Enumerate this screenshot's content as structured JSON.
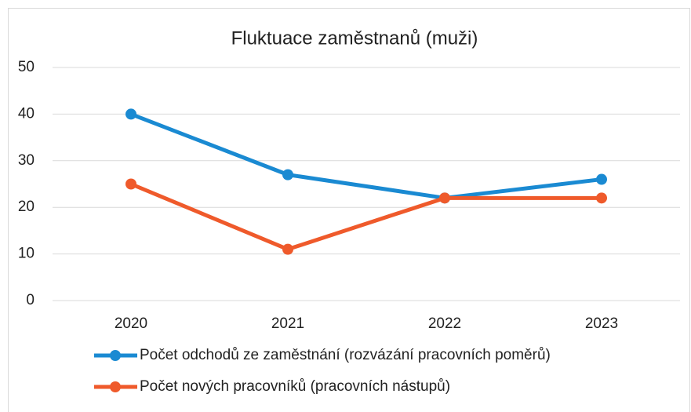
{
  "chart_data": {
    "type": "line",
    "title": "Fluktuace zaměstnanů (muži)",
    "categories": [
      "2020",
      "2021",
      "2022",
      "2023"
    ],
    "series": [
      {
        "name": "Počet odchodů ze zaměstnání (rozvázání pracovních poměrů)",
        "color": "#1a8ad2",
        "values": [
          40,
          27,
          22,
          26
        ]
      },
      {
        "name": "Počet nových pracovníků (pracovních nástupů)",
        "color": "#ef5a2b",
        "values": [
          25,
          11,
          22,
          22
        ]
      }
    ],
    "ylim": [
      0,
      50
    ],
    "yticks": [
      0,
      10,
      20,
      30,
      40,
      50
    ],
    "grid": true,
    "legend": "bottom"
  }
}
